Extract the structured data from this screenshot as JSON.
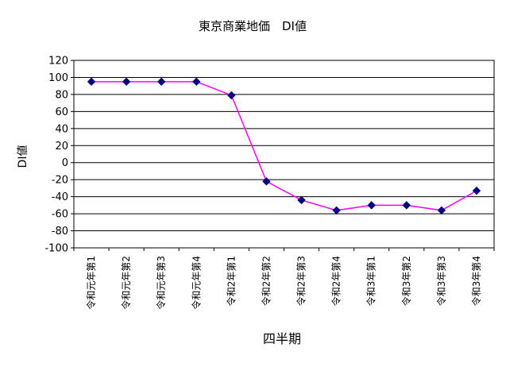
{
  "chart_data": {
    "type": "line",
    "title": "東京商業地価　DI値",
    "xlabel": "四半期",
    "ylabel": "DI値",
    "categories": [
      "令和元年第1",
      "令和元年第2",
      "令和元年第3",
      "令和元年第4",
      "令和2年第1",
      "令和2年第2",
      "令和2年第3",
      "令和2年第4",
      "令和3年第1",
      "令和3年第2",
      "令和3年第3",
      "令和3年第4"
    ],
    "series": [
      {
        "name": "",
        "values": [
          95,
          95,
          95,
          95,
          79,
          -22,
          -44,
          -56,
          -50,
          -50,
          -56,
          -33
        ]
      }
    ],
    "ylim": [
      -100,
      120
    ],
    "yticks": [
      120,
      100,
      80,
      60,
      40,
      20,
      0,
      -20,
      -40,
      -60,
      -80,
      -100
    ],
    "grid": true,
    "legend": "none",
    "colors": {
      "line": "#ff00ff",
      "marker": "#000080",
      "grid": "#000000",
      "background": "#ffffff"
    }
  }
}
